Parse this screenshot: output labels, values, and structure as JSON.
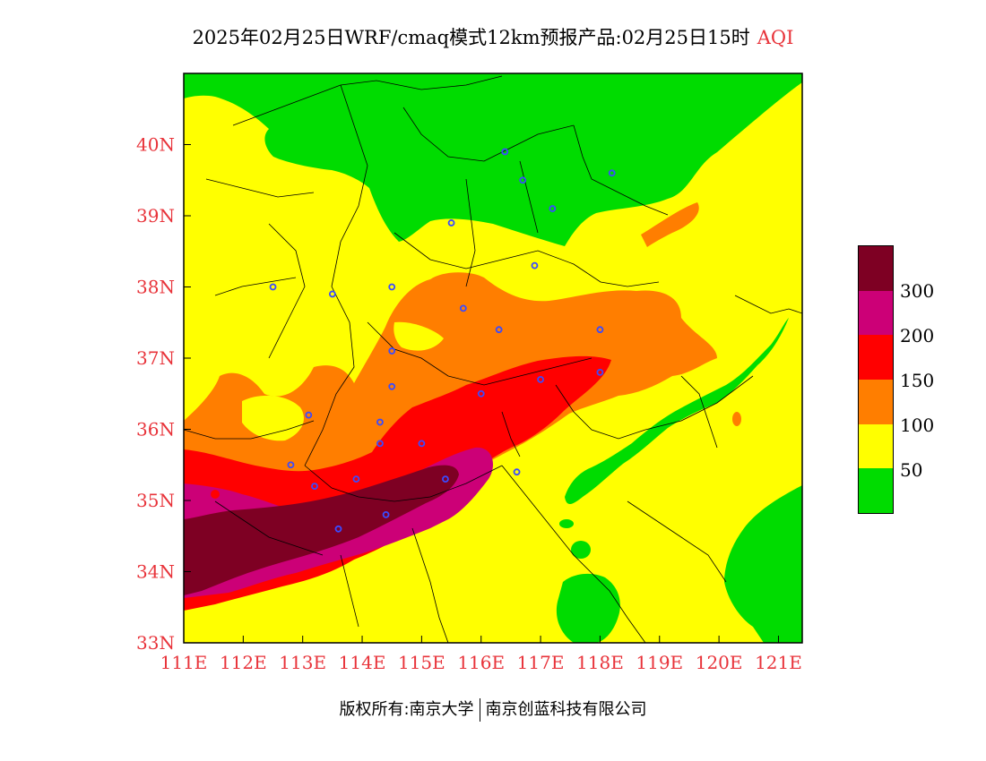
{
  "title": {
    "main": "2025年02月25日WRF/cmaq模式12km预报产品:02月25日15时",
    "variable": "AQI"
  },
  "map": {
    "lon_range": [
      111,
      121.4
    ],
    "lat_range": [
      33,
      41
    ],
    "x_ticks": [
      {
        "value": 111,
        "label": "111E"
      },
      {
        "value": 112,
        "label": "112E"
      },
      {
        "value": 113,
        "label": "113E"
      },
      {
        "value": 114,
        "label": "114E"
      },
      {
        "value": 115,
        "label": "115E"
      },
      {
        "value": 116,
        "label": "116E"
      },
      {
        "value": 117,
        "label": "117E"
      },
      {
        "value": 118,
        "label": "118E"
      },
      {
        "value": 119,
        "label": "119E"
      },
      {
        "value": 120,
        "label": "120E"
      },
      {
        "value": 121,
        "label": "121E"
      }
    ],
    "y_ticks": [
      {
        "value": 33,
        "label": "33N"
      },
      {
        "value": 34,
        "label": "34N"
      },
      {
        "value": 35,
        "label": "35N"
      },
      {
        "value": 36,
        "label": "36N"
      },
      {
        "value": 37,
        "label": "37N"
      },
      {
        "value": 38,
        "label": "38N"
      },
      {
        "value": 39,
        "label": "39N"
      },
      {
        "value": 40,
        "label": "40N"
      }
    ],
    "colors": {
      "good": "#00dc00",
      "moderate": "#ffff00",
      "unhealthy_sensitive": "#ff7e00",
      "unhealthy": "#ff0000",
      "very_unhealthy": "#cc0077",
      "hazardous": "#7e0023"
    },
    "city_markers": [
      {
        "lon": 116.4,
        "lat": 39.9
      },
      {
        "lon": 116.7,
        "lat": 39.5
      },
      {
        "lon": 118.2,
        "lat": 39.6
      },
      {
        "lon": 117.2,
        "lat": 39.1
      },
      {
        "lon": 115.5,
        "lat": 38.9
      },
      {
        "lon": 116.9,
        "lat": 38.3
      },
      {
        "lon": 112.5,
        "lat": 38.0
      },
      {
        "lon": 113.5,
        "lat": 37.9
      },
      {
        "lon": 114.5,
        "lat": 38.0
      },
      {
        "lon": 115.7,
        "lat": 37.7
      },
      {
        "lon": 116.3,
        "lat": 37.4
      },
      {
        "lon": 118.0,
        "lat": 37.4
      },
      {
        "lon": 114.5,
        "lat": 37.1
      },
      {
        "lon": 114.5,
        "lat": 36.6
      },
      {
        "lon": 116.0,
        "lat": 36.5
      },
      {
        "lon": 117.0,
        "lat": 36.7
      },
      {
        "lon": 118.0,
        "lat": 36.8
      },
      {
        "lon": 113.1,
        "lat": 36.2
      },
      {
        "lon": 114.3,
        "lat": 36.1
      },
      {
        "lon": 114.3,
        "lat": 35.8
      },
      {
        "lon": 115.0,
        "lat": 35.8
      },
      {
        "lon": 112.8,
        "lat": 35.5
      },
      {
        "lon": 113.2,
        "lat": 35.2
      },
      {
        "lon": 113.9,
        "lat": 35.3
      },
      {
        "lon": 115.4,
        "lat": 35.3
      },
      {
        "lon": 116.6,
        "lat": 35.4
      },
      {
        "lon": 114.4,
        "lat": 34.8
      },
      {
        "lon": 113.6,
        "lat": 34.6
      }
    ]
  },
  "legend": {
    "labels": [
      "300",
      "200",
      "150",
      "100",
      "50"
    ],
    "colors": [
      "#7e0023",
      "#cc0077",
      "#ff0000",
      "#ff7e00",
      "#ffff00",
      "#00dc00"
    ]
  },
  "footer": {
    "copyright": "版权所有:南京大学",
    "company": "南京创蓝科技有限公司"
  }
}
